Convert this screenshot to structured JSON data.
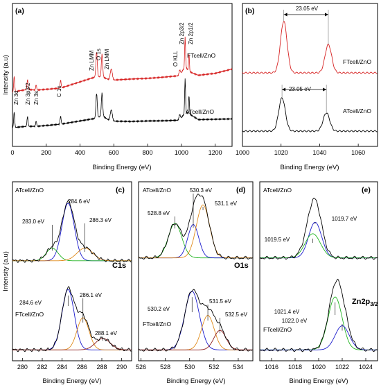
{
  "colors": {
    "at": "#000000",
    "ft": "#d62020",
    "fit_blue": "#1a1acc",
    "fit_green": "#22b422",
    "fit_orange": "#e08a1a",
    "fit_brown": "#8b1a1a"
  },
  "chart_data": [
    {
      "id": "a",
      "type": "line",
      "panel_label": "(a)",
      "xlabel": "Binding Energy (eV)",
      "ylabel": "Intensity (a.u)",
      "xlim": [
        0,
        1300
      ],
      "xticks": [
        0,
        200,
        400,
        600,
        800,
        1000,
        1200
      ],
      "series": [
        {
          "name": "ATcell/ZnO",
          "color": "#000000",
          "x": [
            0,
            10,
            89,
            140,
            285,
            498,
            530,
            580,
            700,
            800,
            900,
            990,
            1022,
            1045,
            1100,
            1200,
            1300
          ],
          "y": [
            0.3,
            0.32,
            0.38,
            0.36,
            0.47,
            0.8,
            0.96,
            0.6,
            0.55,
            0.56,
            0.55,
            0.57,
            1.05,
            0.97,
            0.58,
            0.58,
            0.58
          ]
        },
        {
          "name": "FTcell/ZnO",
          "color": "#d62020",
          "x": [
            0,
            10,
            89,
            140,
            285,
            498,
            530,
            580,
            700,
            800,
            900,
            990,
            1022,
            1045,
            1100,
            1200,
            1300
          ],
          "y": [
            1.1,
            1.15,
            1.28,
            1.22,
            1.32,
            2.0,
            1.98,
            1.75,
            1.8,
            1.82,
            1.88,
            1.95,
            2.55,
            2.2,
            1.95,
            2.05,
            2.3
          ]
        }
      ],
      "annotations": [
        "Zn 3d",
        "Zn 3p3/2",
        "Zn 3s",
        "C 1s",
        "Zn LMM",
        "O 1s",
        "Zn LMM",
        "O KLL",
        "Zn 2p3/2",
        "Zn 2p1/2"
      ]
    },
    {
      "id": "b",
      "type": "line",
      "panel_label": "(b)",
      "xlabel": "Binding Energy (eV)",
      "ylabel": "",
      "xlim": [
        1000,
        1070
      ],
      "xticks": [
        1000,
        1020,
        1040,
        1060
      ],
      "series": [
        {
          "name": "ATcell/ZnO",
          "color": "#000000",
          "peaks": [
            {
              "x": 1020.5,
              "h": 1.0,
              "w": 1.7
            },
            {
              "x": 1043.5,
              "h": 0.55,
              "w": 1.7
            }
          ],
          "baseline": 0.0
        },
        {
          "name": "FTcell/ZnO",
          "color": "#d62020",
          "peaks": [
            {
              "x": 1021.4,
              "h": 1.55,
              "w": 1.7
            },
            {
              "x": 1044.5,
              "h": 0.85,
              "w": 1.7
            }
          ],
          "baseline": 1.75
        }
      ],
      "separations": [
        "23.05 eV",
        "23.05 eV"
      ]
    },
    {
      "id": "c",
      "type": "line",
      "core_level": "C1s",
      "panel_label": "(c)",
      "xlabel": "Binding Energy (eV)",
      "ylabel": "Intensity (a.u)",
      "xlim": [
        279,
        291
      ],
      "xticks": [
        280,
        282,
        284,
        286,
        288,
        290
      ],
      "top": {
        "name": "ATcell/ZnO",
        "baseline": 1.55,
        "components": [
          {
            "center": 284.6,
            "label": "284.6 eV",
            "color": "#1a1acc",
            "h": 1.0,
            "w": 0.62
          },
          {
            "center": 283.0,
            "label": "283.0 eV",
            "color": "#22b422",
            "h": 0.22,
            "w": 0.6
          },
          {
            "center": 286.3,
            "label": "286.3 eV",
            "color": "#e08a1a",
            "h": 0.22,
            "w": 0.8
          }
        ]
      },
      "bottom": {
        "name": "FTcell/ZnO",
        "baseline": 0.0,
        "components": [
          {
            "center": 284.6,
            "label": "284.6 eV",
            "color": "#1a1acc",
            "h": 1.05,
            "w": 0.62
          },
          {
            "center": 286.1,
            "label": "286.1 eV",
            "color": "#e08a1a",
            "h": 0.56,
            "w": 0.6
          },
          {
            "center": 288.1,
            "label": "288.1 eV",
            "color": "#8b1a1a",
            "h": 0.2,
            "w": 0.75
          }
        ]
      }
    },
    {
      "id": "d",
      "type": "line",
      "core_level": "O1s",
      "panel_label": "(d)",
      "xlabel": "Binding Energy (eV)",
      "ylabel": "",
      "xlim": [
        525.8,
        535.2
      ],
      "xticks": [
        526,
        528,
        530,
        532,
        534
      ],
      "top": {
        "name": "ATcell/ZnO",
        "baseline": 1.6,
        "components": [
          {
            "center": 528.8,
            "label": "528.8 eV",
            "color": "#22b422",
            "h": 0.6,
            "w": 0.55
          },
          {
            "center": 530.3,
            "label": "530.3 eV",
            "color": "#1a1acc",
            "h": 0.58,
            "w": 0.45
          },
          {
            "center": 531.1,
            "label": "531.1 eV",
            "color": "#e08a1a",
            "h": 0.92,
            "w": 0.55
          }
        ]
      },
      "bottom": {
        "name": "FTcell/ZnO",
        "baseline": 0.0,
        "components": [
          {
            "center": 530.2,
            "label": "530.2 eV",
            "color": "#1a1acc",
            "h": 1.02,
            "w": 0.6
          },
          {
            "center": 531.5,
            "label": "531.5 eV",
            "color": "#e08a1a",
            "h": 0.6,
            "w": 0.52
          },
          {
            "center": 532.5,
            "label": "532.5 eV",
            "color": "#8b1a1a",
            "h": 0.34,
            "w": 0.5
          }
        ]
      }
    },
    {
      "id": "e",
      "type": "line",
      "core_level": "Zn2p3/2",
      "panel_label": "(e)",
      "xlabel": "Binding Energy (eV)",
      "ylabel": "",
      "xlim": [
        1015,
        1025
      ],
      "xticks": [
        1016,
        1018,
        1020,
        1022,
        1024
      ],
      "top": {
        "name": "ATcell/ZnO",
        "baseline": 1.6,
        "components": [
          {
            "center": 1019.7,
            "label": "1019.7 eV",
            "color": "#1a1acc",
            "h": 0.62,
            "w": 0.55
          },
          {
            "center": 1019.5,
            "label": "1019.5 eV",
            "color": "#22b422",
            "h": 0.42,
            "w": 0.65
          }
        ]
      },
      "bottom": {
        "name": "FTcell/ZnO",
        "baseline": 0.0,
        "components": [
          {
            "center": 1021.4,
            "label": "1021.4 eV",
            "color": "#22b422",
            "h": 0.92,
            "w": 0.6
          },
          {
            "center": 1022.0,
            "label": "1022.0 eV",
            "color": "#1a1acc",
            "h": 0.42,
            "w": 0.6
          }
        ]
      }
    }
  ]
}
